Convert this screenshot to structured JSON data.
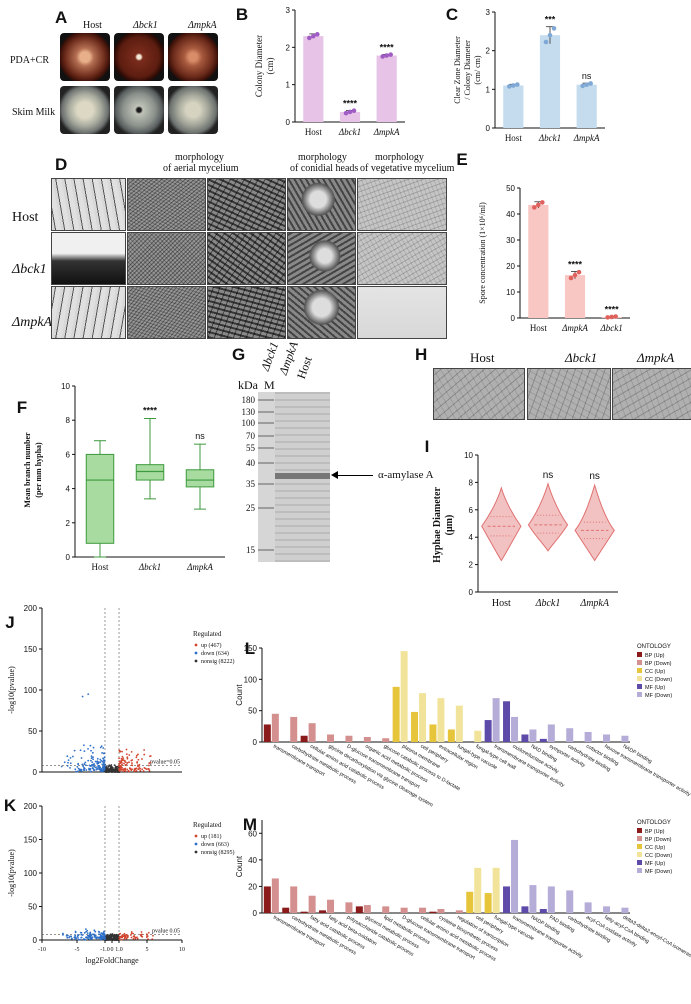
{
  "panelA": {
    "letter": "A",
    "columns": [
      "Host",
      "Δbck1",
      "ΔmpkA"
    ],
    "rows": [
      "PDA+CR",
      "Skim Milk"
    ]
  },
  "panelD": {
    "letter": "D",
    "headers": [
      "morphology\nof aerial mycelium",
      "morphology\nof conidial heads",
      "morphology\nof vegetative mycelium"
    ],
    "header_lines": {
      "aerial_1": "morphology",
      "aerial_2": "of aerial mycelium",
      "heads_1": "morphology",
      "heads_2": "of conidial heads",
      "veg_1": "morphology",
      "veg_2": "of vegetative mycelium"
    },
    "rows": [
      "Host",
      "Δbck1",
      "ΔmpkA"
    ]
  },
  "panelG": {
    "letter": "G",
    "kda_label": "kDa",
    "marker_label": "M",
    "lanes": [
      "Δbck1",
      "ΔmpkA",
      "Host"
    ],
    "markers": [
      "180",
      "130",
      "100",
      "70",
      "55",
      "40",
      "35",
      "25",
      "15"
    ],
    "band_label": "α-amylase A"
  },
  "panelH": {
    "letter": "H",
    "columns": [
      "Host",
      "Δbck1",
      "ΔmpkA"
    ]
  },
  "colors": {
    "pink": "#e7c3e8",
    "purple": "#a05cc4",
    "lightblue": "#c4dced",
    "blue_dot": "#7fa8d6",
    "salmon": "#f8c7c4",
    "red_dot": "#e0605c",
    "green": "#a8dba0",
    "green_line": "#3d9a3d",
    "violin": "#f2c2c2",
    "violin_line": "#e07070",
    "volcano_up": "#d2452e",
    "volcano_down": "#2e6fc8",
    "volcano_nonsig": "#333333"
  },
  "chart_data": [
    {
      "id": "B",
      "letter": "B",
      "type": "bar",
      "categories": [
        "Host",
        "Δbck1",
        "ΔmpkA"
      ],
      "values": [
        2.3,
        0.27,
        1.78
      ],
      "errors": [
        0.06,
        0.04,
        0.03
      ],
      "significance": [
        "",
        "****",
        "****"
      ],
      "ylabel_1": "Colony Diameter",
      "ylabel_2": "(cm)",
      "ylim": [
        0,
        3
      ],
      "yticks": [
        "0",
        "1",
        "2",
        "3"
      ]
    },
    {
      "id": "C",
      "letter": "C",
      "type": "bar",
      "categories": [
        "Host",
        "Δbck1",
        "ΔmpkA"
      ],
      "values": [
        1.1,
        2.4,
        1.12
      ],
      "errors": [
        0.03,
        0.22,
        0.04
      ],
      "significance": [
        "",
        "***",
        "ns"
      ],
      "ylabel_1": "Clear Zone Diameter",
      "ylabel_2": "/ Colony Diameter",
      "ylabel_3": "(cm/ cm)",
      "ylim": [
        0,
        3
      ],
      "yticks": [
        "0",
        "1",
        "2",
        "3"
      ]
    },
    {
      "id": "E",
      "letter": "E",
      "type": "bar",
      "categories": [
        "Host",
        "ΔmpkA",
        "Δbck1"
      ],
      "values": [
        43.5,
        16.5,
        0.4
      ],
      "errors": [
        1.2,
        1.4,
        0.2
      ],
      "significance": [
        "",
        "****",
        "****"
      ],
      "ylabel": "Spore concentration (1×10⁶/ml)",
      "ylim": [
        0,
        50
      ],
      "yticks": [
        "0",
        "10",
        "20",
        "30",
        "40",
        "50"
      ]
    },
    {
      "id": "F",
      "letter": "F",
      "type": "box",
      "categories": [
        "Host",
        "Δbck1",
        "ΔmpkA"
      ],
      "boxes": [
        {
          "min": 0,
          "q1": 0.8,
          "median": 4.5,
          "q3": 6.0,
          "max": 6.8
        },
        {
          "min": 3.4,
          "q1": 4.5,
          "median": 5.0,
          "q3": 5.4,
          "max": 8.1
        },
        {
          "min": 2.8,
          "q1": 4.1,
          "median": 4.5,
          "q3": 5.1,
          "max": 6.6
        }
      ],
      "significance": [
        "",
        "****",
        "ns"
      ],
      "ylabel_1": "Mean branch number",
      "ylabel_2": "(per mm hypha)",
      "ylim": [
        0,
        10
      ],
      "yticks": [
        "0",
        "2",
        "4",
        "6",
        "8",
        "10"
      ]
    },
    {
      "id": "I",
      "letter": "I",
      "type": "violin",
      "categories": [
        "Host",
        "Δbck1",
        "ΔmpkA"
      ],
      "violins": [
        {
          "min": 2.3,
          "q1": 4.1,
          "median": 4.8,
          "q3": 5.5,
          "max": 7.6
        },
        {
          "min": 3.0,
          "q1": 4.3,
          "median": 4.9,
          "q3": 5.6,
          "max": 7.9
        },
        {
          "min": 2.3,
          "q1": 3.9,
          "median": 4.5,
          "q3": 5.1,
          "max": 7.8
        }
      ],
      "significance": [
        "",
        "ns",
        "ns"
      ],
      "ylabel_1": "Hyphae Diameter",
      "ylabel_2": "(μm)",
      "ylim": [
        0,
        10
      ],
      "yticks": [
        "0",
        "2",
        "4",
        "6",
        "8",
        "10"
      ]
    },
    {
      "id": "J",
      "letter": "J",
      "type": "scatter",
      "ylabel": "-log10(pvalue)",
      "ylim": [
        0,
        200
      ],
      "yticks": [
        "0",
        "50",
        "100",
        "150",
        "200"
      ],
      "xlim": [
        -10,
        10
      ],
      "threshold_label": "pvalue=0.05",
      "legend_title": "Regulated",
      "legend": [
        "up (467)",
        "down (634)",
        "nonsig (8222)"
      ]
    },
    {
      "id": "K",
      "letter": "K",
      "type": "scatter",
      "ylabel": "-log10(pvalue)",
      "xlabel": "log2FoldChange",
      "ylim": [
        0,
        200
      ],
      "yticks": [
        "0",
        "50",
        "100",
        "150",
        "200"
      ],
      "xlim": [
        -10,
        10
      ],
      "xticks": [
        "-10",
        "-5",
        "-1.0",
        "0",
        "1.0",
        "5",
        "10"
      ],
      "threshold_label": "pvalue 0.05",
      "legend_title": "Regulated",
      "legend": [
        "up (181)",
        "down (663)",
        "nonsig (8295)"
      ]
    },
    {
      "id": "L",
      "letter": "L",
      "type": "bar",
      "ylabel": "Count",
      "ylim": [
        0,
        150
      ],
      "yticks": [
        "0",
        "50",
        "100",
        "150"
      ],
      "legend_title": "ONTOLOGY",
      "legend": [
        "BP (Up)",
        "BP (Down)",
        "CC (Up)",
        "CC (Down)",
        "MF (Up)",
        "MF (Down)"
      ],
      "legend_colors": [
        "#8b1a1a",
        "#d48f8f",
        "#e6c53a",
        "#f2e39a",
        "#5e4aa8",
        "#b5acd8"
      ],
      "categories": [
        "transmembrane transport",
        "carbohydrate metabolic process",
        "cellular amino acid catabolic process",
        "glycine decarboxylation via glycine cleavage system",
        "D-glucose transmembrane transport",
        "organic acid metabolic process",
        "glucose catabolic process to D-lactate",
        "plasma membrane",
        "cell periphery",
        "extracellular region",
        "fungal-type vacuole",
        "fungal-type cell wall",
        "transmembrane transporter activity",
        "oxidoreductase activity",
        "NAD binding",
        "symporter activity",
        "carbohydrate binding",
        "cofactor binding",
        "hexose transmembrane transporter activity",
        "NADP binding"
      ],
      "groups": [
        0,
        1,
        1,
        1,
        1,
        1,
        1,
        2,
        3,
        3,
        3,
        3,
        4,
        5,
        5,
        5,
        5,
        5,
        5,
        5
      ],
      "pairs": [
        [
          28,
          45
        ],
        [
          0,
          40
        ],
        [
          10,
          30
        ],
        [
          0,
          12
        ],
        [
          0,
          10
        ],
        [
          0,
          8
        ],
        [
          0,
          6
        ],
        [
          88,
          145
        ],
        [
          48,
          78
        ],
        [
          28,
          70
        ],
        [
          20,
          58
        ],
        [
          0,
          18
        ],
        [
          35,
          70
        ],
        [
          65,
          40
        ],
        [
          12,
          20
        ],
        [
          5,
          28
        ],
        [
          0,
          22
        ],
        [
          0,
          16
        ],
        [
          0,
          12
        ],
        [
          0,
          10
        ]
      ]
    },
    {
      "id": "M",
      "letter": "M",
      "type": "bar",
      "ylabel": "Count",
      "ylim": [
        0,
        70
      ],
      "yticks": [
        "0",
        "20",
        "40",
        "60"
      ],
      "legend_title": "ONTOLOGY",
      "legend": [
        "BP (Up)",
        "BP (Down)",
        "CC (Up)",
        "CC (Down)",
        "MF (Up)",
        "MF (Down)"
      ],
      "legend_colors": [
        "#8b1a1a",
        "#d48f8f",
        "#e6c53a",
        "#f2e39a",
        "#5e4aa8",
        "#b5acd8"
      ],
      "categories": [
        "transmembrane transport",
        "carbohydrate metabolic process",
        "fatty acid catabolic process",
        "fatty acid beta-oxidation",
        "polysaccharide catabolic process",
        "glycerol metabolic process",
        "lipid metabolic process",
        "D-glucose transmembrane transport",
        "cellular amino acid metabolic process",
        "cysteine biosynthetic process",
        "regulation of transcription",
        "cell periphery",
        "fungal-type vacuole",
        "transmembrane transporter activity",
        "NADP binding",
        "FAD binding",
        "carbohydrate binding",
        "acyl-CoA oxidase activity",
        "fatty-acyl-CoA binding",
        "delta3-delta2-enoyl-CoA isomerase activity"
      ],
      "groups": [
        0,
        1,
        1,
        1,
        1,
        1,
        1,
        1,
        1,
        1,
        1,
        3,
        3,
        4,
        5,
        5,
        5,
        5,
        5,
        5
      ],
      "pairs": [
        [
          20,
          26
        ],
        [
          4,
          20
        ],
        [
          1,
          13
        ],
        [
          2,
          10
        ],
        [
          0,
          8
        ],
        [
          5,
          6
        ],
        [
          0,
          5
        ],
        [
          0,
          4
        ],
        [
          0,
          4
        ],
        [
          1,
          3
        ],
        [
          0,
          2
        ],
        [
          16,
          34
        ],
        [
          15,
          34
        ],
        [
          20,
          55
        ],
        [
          5,
          21
        ],
        [
          3,
          20
        ],
        [
          0,
          17
        ],
        [
          0,
          8
        ],
        [
          0,
          5
        ],
        [
          0,
          4
        ]
      ]
    }
  ]
}
